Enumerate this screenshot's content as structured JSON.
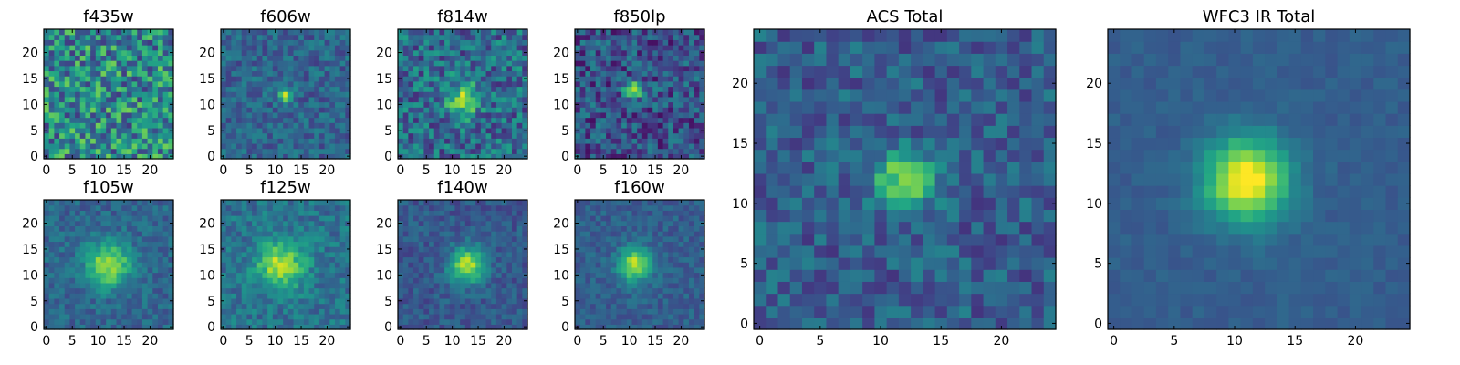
{
  "chart_data": [
    {
      "type": "heatmap",
      "title": "f435w",
      "grid_size": 25,
      "xlim": [
        0,
        24
      ],
      "ylim": [
        0,
        24
      ],
      "xticks": [
        0,
        5,
        10,
        15,
        20
      ],
      "yticks": [
        0,
        5,
        10,
        15,
        20
      ],
      "colormap": "viridis",
      "peak": [
        12,
        12
      ],
      "peak_strength": 0.0,
      "noise": 0.62,
      "sigma": 2.0,
      "bg": 0.48
    },
    {
      "type": "heatmap",
      "title": "f606w",
      "grid_size": 25,
      "xlim": [
        0,
        24
      ],
      "ylim": [
        0,
        24
      ],
      "xticks": [
        0,
        5,
        10,
        15,
        20
      ],
      "yticks": [
        0,
        5,
        10,
        15,
        20
      ],
      "colormap": "viridis",
      "peak": [
        12,
        12
      ],
      "peak_strength": 0.55,
      "noise": 0.28,
      "sigma": 1.0,
      "bg": 0.32
    },
    {
      "type": "heatmap",
      "title": "f814w",
      "grid_size": 25,
      "xlim": [
        0,
        24
      ],
      "ylim": [
        0,
        24
      ],
      "xticks": [
        0,
        5,
        10,
        15,
        20
      ],
      "yticks": [
        0,
        5,
        10,
        15,
        20
      ],
      "colormap": "viridis",
      "peak": [
        12,
        11
      ],
      "peak_strength": 0.45,
      "noise": 0.45,
      "sigma": 2.3,
      "bg": 0.35
    },
    {
      "type": "heatmap",
      "title": "f850lp",
      "grid_size": 25,
      "xlim": [
        0,
        24
      ],
      "ylim": [
        0,
        24
      ],
      "xticks": [
        0,
        5,
        10,
        15,
        20
      ],
      "yticks": [
        0,
        5,
        10,
        15,
        20
      ],
      "colormap": "viridis",
      "peak": [
        11,
        13
      ],
      "peak_strength": 0.55,
      "noise": 0.42,
      "sigma": 1.3,
      "bg": 0.25
    },
    {
      "type": "heatmap",
      "title": "f105w",
      "grid_size": 25,
      "xlim": [
        0,
        24
      ],
      "ylim": [
        0,
        24
      ],
      "xticks": [
        0,
        5,
        10,
        15,
        20
      ],
      "yticks": [
        0,
        5,
        10,
        15,
        20
      ],
      "colormap": "viridis",
      "peak": [
        12,
        12
      ],
      "peak_strength": 0.55,
      "noise": 0.22,
      "sigma": 3.0,
      "bg": 0.33
    },
    {
      "type": "heatmap",
      "title": "f125w",
      "grid_size": 25,
      "xlim": [
        0,
        24
      ],
      "ylim": [
        0,
        24
      ],
      "xticks": [
        0,
        5,
        10,
        15,
        20
      ],
      "yticks": [
        0,
        5,
        10,
        15,
        20
      ],
      "colormap": "viridis",
      "peak": [
        11,
        12
      ],
      "peak_strength": 0.5,
      "noise": 0.25,
      "sigma": 3.2,
      "bg": 0.38
    },
    {
      "type": "heatmap",
      "title": "f140w",
      "grid_size": 25,
      "xlim": [
        0,
        24
      ],
      "ylim": [
        0,
        24
      ],
      "xticks": [
        0,
        5,
        10,
        15,
        20
      ],
      "yticks": [
        0,
        5,
        10,
        15,
        20
      ],
      "colormap": "viridis",
      "peak": [
        13,
        12
      ],
      "peak_strength": 0.6,
      "noise": 0.2,
      "sigma": 2.4,
      "bg": 0.28
    },
    {
      "type": "heatmap",
      "title": "f160w",
      "grid_size": 25,
      "xlim": [
        0,
        24
      ],
      "ylim": [
        0,
        24
      ],
      "xticks": [
        0,
        5,
        10,
        15,
        20
      ],
      "yticks": [
        0,
        5,
        10,
        15,
        20
      ],
      "colormap": "viridis",
      "peak": [
        11,
        12
      ],
      "peak_strength": 0.6,
      "noise": 0.18,
      "sigma": 2.2,
      "bg": 0.3
    },
    {
      "type": "heatmap",
      "title": "ACS Total",
      "grid_size": 25,
      "xlim": [
        0,
        24
      ],
      "ylim": [
        0,
        24
      ],
      "xticks": [
        0,
        5,
        10,
        15,
        20
      ],
      "yticks": [
        0,
        5,
        10,
        15,
        20
      ],
      "colormap": "viridis",
      "peak": [
        12,
        12
      ],
      "peak_strength": 0.55,
      "noise": 0.3,
      "sigma": 1.6,
      "bg": 0.3
    },
    {
      "type": "heatmap",
      "title": "WFC3 IR Total",
      "grid_size": 25,
      "xlim": [
        0,
        24
      ],
      "ylim": [
        0,
        24
      ],
      "xticks": [
        0,
        5,
        10,
        15,
        20
      ],
      "yticks": [
        0,
        5,
        10,
        15,
        20
      ],
      "colormap": "viridis",
      "peak": [
        11,
        12
      ],
      "peak_strength": 0.75,
      "noise": 0.08,
      "sigma": 2.4,
      "bg": 0.3
    }
  ]
}
